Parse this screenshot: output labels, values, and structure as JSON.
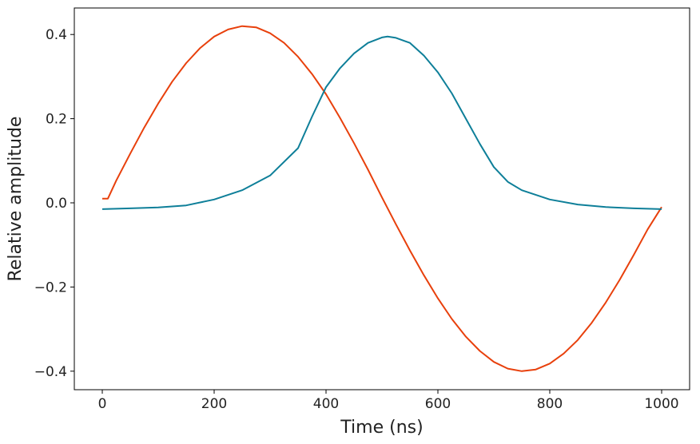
{
  "chart_data": {
    "type": "line",
    "xlabel": "Time (ns)",
    "ylabel": "Relative amplitude",
    "xlim": [
      -50,
      1050
    ],
    "xticks": [
      0,
      200,
      400,
      600,
      800,
      1000
    ],
    "ylim": [
      -0.444,
      0.463
    ],
    "yticks": [
      {
        "value": -0.4,
        "label": "−0.4"
      },
      {
        "value": -0.2,
        "label": "−0.2"
      },
      {
        "value": 0,
        "label": "0.0"
      },
      0.2,
      0.4
    ],
    "grid": false,
    "series": [
      {
        "color": "#e8400c",
        "x": [
          0,
          10,
          25,
          50,
          75,
          100,
          125,
          150,
          175,
          200,
          225,
          250,
          275,
          300,
          325,
          350,
          375,
          400,
          425,
          450,
          475,
          500,
          525,
          550,
          575,
          600,
          625,
          650,
          675,
          700,
          725,
          750,
          775,
          800,
          825,
          850,
          875,
          900,
          925,
          950,
          975,
          1000
        ],
        "values": [
          0.01,
          0.01,
          0.053,
          0.117,
          0.179,
          0.236,
          0.288,
          0.332,
          0.368,
          0.395,
          0.412,
          0.42,
          0.417,
          0.403,
          0.38,
          0.347,
          0.306,
          0.258,
          0.202,
          0.142,
          0.079,
          0.013,
          -0.051,
          -0.113,
          -0.172,
          -0.227,
          -0.276,
          -0.318,
          -0.352,
          -0.378,
          -0.394,
          -0.4,
          -0.396,
          -0.382,
          -0.358,
          -0.326,
          -0.285,
          -0.237,
          -0.183,
          -0.124,
          -0.063,
          -0.01
        ]
      },
      {
        "color": "#0e7f99",
        "x": [
          0,
          50,
          100,
          150,
          200,
          250,
          300,
          350,
          375,
          400,
          425,
          450,
          475,
          500,
          510,
          525,
          550,
          575,
          600,
          625,
          650,
          675,
          700,
          725,
          750,
          800,
          850,
          900,
          950,
          1000
        ],
        "values": [
          -0.015,
          -0.013,
          -0.011,
          -0.006,
          0.008,
          0.03,
          0.065,
          0.13,
          0.205,
          0.275,
          0.32,
          0.355,
          0.38,
          0.393,
          0.395,
          0.392,
          0.38,
          0.35,
          0.31,
          0.26,
          0.2,
          0.14,
          0.085,
          0.05,
          0.03,
          0.008,
          -0.004,
          -0.01,
          -0.013,
          -0.015
        ]
      }
    ]
  }
}
